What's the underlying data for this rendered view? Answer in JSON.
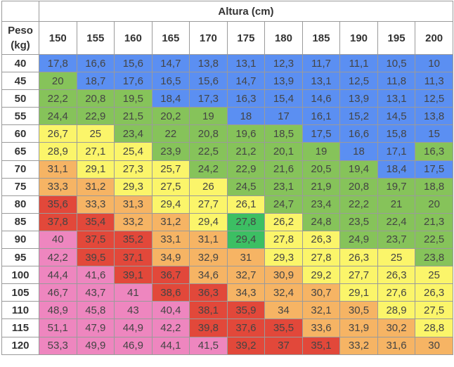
{
  "table": {
    "title": "Altura (cm)",
    "corner_label_line1": "Peso",
    "corner_label_line2": "(kg)",
    "heights": [
      "150",
      "155",
      "160",
      "165",
      "170",
      "175",
      "180",
      "185",
      "190",
      "195",
      "200"
    ],
    "rows": [
      {
        "weight": "40",
        "values": [
          "17,8",
          "16,6",
          "15,6",
          "14,7",
          "13,8",
          "13,1",
          "12,3",
          "11,7",
          "11,1",
          "10,5",
          "10"
        ]
      },
      {
        "weight": "45",
        "values": [
          "20",
          "18,7",
          "17,6",
          "16,5",
          "15,6",
          "14,7",
          "13,9",
          "13,1",
          "12,5",
          "11,8",
          "11,3"
        ]
      },
      {
        "weight": "50",
        "values": [
          "22,2",
          "20,8",
          "19,5",
          "18,4",
          "17,3",
          "16,3",
          "15,4",
          "14,6",
          "13,9",
          "13,1",
          "12,5"
        ]
      },
      {
        "weight": "55",
        "values": [
          "24,4",
          "22,9",
          "21,5",
          "20,2",
          "19",
          "18",
          "17",
          "16,1",
          "15,2",
          "14,5",
          "13,8"
        ]
      },
      {
        "weight": "60",
        "values": [
          "26,7",
          "25",
          "23,4",
          "22",
          "20,8",
          "19,6",
          "18,5",
          "17,5",
          "16,6",
          "15,8",
          "15"
        ]
      },
      {
        "weight": "65",
        "values": [
          "28,9",
          "27,1",
          "25,4",
          "23,9",
          "22,5",
          "21,2",
          "20,1",
          "19",
          "18",
          "17,1",
          "16,3"
        ]
      },
      {
        "weight": "70",
        "values": [
          "31,1",
          "29,1",
          "27,3",
          "25,7",
          "24,2",
          "22,9",
          "21,6",
          "20,5",
          "19,4",
          "18,4",
          "17,5"
        ]
      },
      {
        "weight": "75",
        "values": [
          "33,3",
          "31,2",
          "29,3",
          "27,5",
          "26",
          "24,5",
          "23,1",
          "21,9",
          "20,8",
          "19,7",
          "18,8"
        ]
      },
      {
        "weight": "80",
        "values": [
          "35,6",
          "33,3",
          "31,3",
          "29,4",
          "27,7",
          "26,1",
          "24,7",
          "23,4",
          "22,2",
          "21",
          "20"
        ]
      },
      {
        "weight": "85",
        "values": [
          "37,8",
          "35,4",
          "33,2",
          "31,2",
          "29,4",
          "27,8",
          "26,2",
          "24,8",
          "23,5",
          "22,4",
          "21,3"
        ]
      },
      {
        "weight": "90",
        "values": [
          "40",
          "37,5",
          "35,2",
          "33,1",
          "31,1",
          "29,4",
          "27,8",
          "26,3",
          "24,9",
          "23,7",
          "22,5"
        ]
      },
      {
        "weight": "95",
        "values": [
          "42,2",
          "39,5",
          "37,1",
          "34,9",
          "32,9",
          "31",
          "29,3",
          "27,8",
          "26,3",
          "25",
          "23,8"
        ]
      },
      {
        "weight": "100",
        "values": [
          "44,4",
          "41,6",
          "39,1",
          "36,7",
          "34,6",
          "32,7",
          "30,9",
          "29,2",
          "27,7",
          "26,3",
          "25"
        ]
      },
      {
        "weight": "105",
        "values": [
          "46,7",
          "43,7",
          "41",
          "38,6",
          "36,3",
          "34,3",
          "32,4",
          "30,7",
          "29,1",
          "27,6",
          "26,3"
        ]
      },
      {
        "weight": "110",
        "values": [
          "48,9",
          "45,8",
          "43",
          "40,4",
          "38,1",
          "35,9",
          "34",
          "32,1",
          "30,5",
          "28,9",
          "27,5"
        ]
      },
      {
        "weight": "115",
        "values": [
          "51,1",
          "47,9",
          "44,9",
          "42,2",
          "39,8",
          "37,6",
          "35,5",
          "33,6",
          "31,9",
          "30,2",
          "28,8"
        ]
      },
      {
        "weight": "120",
        "values": [
          "53,3",
          "49,9",
          "46,9",
          "44,1",
          "41,5",
          "39,2",
          "37",
          "35,1",
          "33,2",
          "31,6",
          "30"
        ]
      }
    ],
    "cell_colors": [
      [
        "blue",
        "blue",
        "blue",
        "blue",
        "blue",
        "blue",
        "blue",
        "blue",
        "blue",
        "blue",
        "blue"
      ],
      [
        "green",
        "blue",
        "blue",
        "blue",
        "blue",
        "blue",
        "blue",
        "blue",
        "blue",
        "blue",
        "blue"
      ],
      [
        "green",
        "green",
        "green",
        "blue",
        "blue",
        "blue",
        "blue",
        "blue",
        "blue",
        "blue",
        "blue"
      ],
      [
        "green",
        "green",
        "green",
        "green",
        "green",
        "blue",
        "blue",
        "blue",
        "blue",
        "blue",
        "blue"
      ],
      [
        "yellow",
        "yellow",
        "green",
        "green",
        "green",
        "green",
        "green",
        "blue",
        "blue",
        "blue",
        "blue"
      ],
      [
        "yellow",
        "yellow",
        "yellow",
        "green",
        "green",
        "green",
        "green",
        "green",
        "blue",
        "blue",
        "green"
      ],
      [
        "orange",
        "yellow",
        "yellow",
        "yellow",
        "green",
        "green",
        "green",
        "green",
        "green",
        "blue",
        "blue"
      ],
      [
        "orange",
        "orange",
        "yellow",
        "yellow",
        "yellow",
        "green",
        "green",
        "green",
        "green",
        "green",
        "green"
      ],
      [
        "red",
        "orange",
        "orange",
        "yellow",
        "yellow",
        "yellow",
        "green",
        "green",
        "green",
        "green",
        "green"
      ],
      [
        "red",
        "red",
        "orange",
        "orange",
        "yellow",
        "hl",
        "yellow",
        "green",
        "green",
        "green",
        "green"
      ],
      [
        "pink",
        "red",
        "red",
        "orange",
        "orange",
        "hl",
        "yellow",
        "yellow",
        "green",
        "green",
        "green"
      ],
      [
        "pink",
        "red",
        "red",
        "orange",
        "orange",
        "orange",
        "yellow",
        "yellow",
        "yellow",
        "yellow",
        "green"
      ],
      [
        "pink",
        "pink",
        "red",
        "red",
        "orange",
        "orange",
        "orange",
        "yellow",
        "yellow",
        "yellow",
        "yellow"
      ],
      [
        "pink",
        "pink",
        "pink",
        "red",
        "red",
        "orange",
        "orange",
        "orange",
        "yellow",
        "yellow",
        "yellow"
      ],
      [
        "pink",
        "pink",
        "pink",
        "pink",
        "red",
        "red",
        "orange",
        "orange",
        "orange",
        "yellow",
        "yellow"
      ],
      [
        "pink",
        "pink",
        "pink",
        "pink",
        "red",
        "red",
        "red",
        "orange",
        "orange",
        "orange",
        "yellow"
      ],
      [
        "pink",
        "pink",
        "pink",
        "pink",
        "pink",
        "red",
        "red",
        "red",
        "orange",
        "orange",
        "orange"
      ]
    ],
    "palette": {
      "blue": "#5b8ff2",
      "green": "#86c35a",
      "yellow": "#fbf56a",
      "orange": "#f6b464",
      "red": "#e2483a",
      "pink": "#ee86bf",
      "hl": "#3cbf63"
    }
  }
}
